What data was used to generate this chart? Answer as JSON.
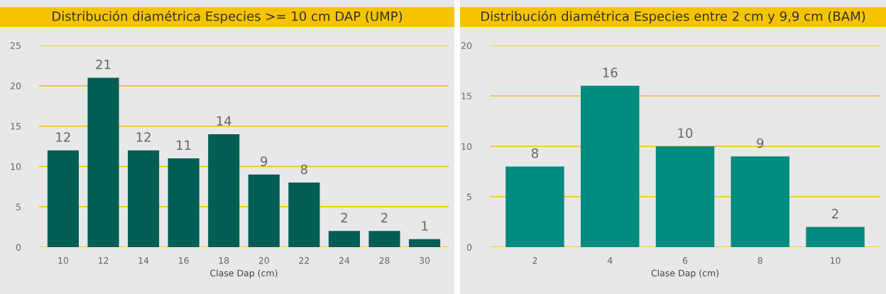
{
  "chart_data": [
    {
      "type": "bar",
      "title": "Distribución diamétrica Especies >= 10 cm DAP (UMP)",
      "xlabel": "Clase Dap (cm)",
      "categories": [
        "10",
        "12",
        "14",
        "16",
        "18",
        "20",
        "22",
        "24",
        "28",
        "30"
      ],
      "values": [
        12,
        21,
        12,
        11,
        14,
        9,
        8,
        2,
        2,
        1
      ],
      "color": "#005e55",
      "ylim": [
        0,
        25
      ],
      "yticks": [
        0,
        5,
        10,
        15,
        20,
        25
      ],
      "grid": "y",
      "data_labels": true
    },
    {
      "type": "bar",
      "title": "Distribución diamétrica Especies entre 2 cm y 9,9 cm (BAM)",
      "xlabel": "Clase Dap (cm)",
      "categories": [
        "2",
        "4",
        "6",
        "8",
        "10"
      ],
      "values": [
        8,
        16,
        10,
        9,
        2
      ],
      "color": "#008c7e",
      "ylim": [
        0,
        20
      ],
      "yticks": [
        0,
        5,
        10,
        15,
        20
      ],
      "grid": "y",
      "data_labels": true
    }
  ]
}
